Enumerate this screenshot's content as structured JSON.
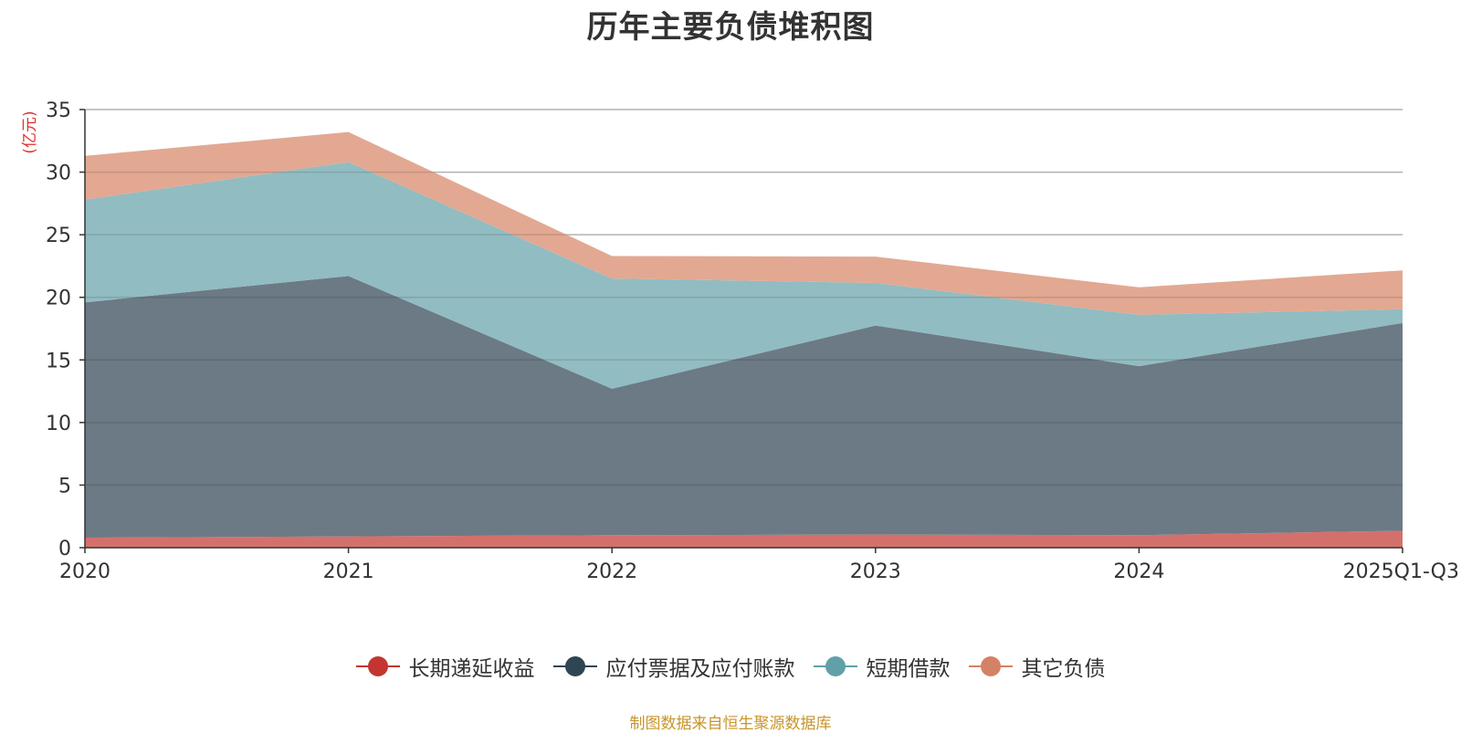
{
  "chart_data": {
    "type": "area",
    "stacked": true,
    "title": "历年主要负债堆积图",
    "ylabel": "(亿元)",
    "xlabel": "",
    "categories": [
      "2020",
      "2021",
      "2022",
      "2023",
      "2024",
      "2025Q1-Q3"
    ],
    "ylim": [
      0,
      35
    ],
    "yticks": [
      0,
      5,
      10,
      15,
      20,
      25,
      30,
      35
    ],
    "grid": true,
    "legend_position": "bottom",
    "series": [
      {
        "name": "长期递延收益",
        "color": "#c23531",
        "fill": "#d4706c",
        "values": [
          0.8,
          0.9,
          1.0,
          1.05,
          1.0,
          1.35
        ]
      },
      {
        "name": "应付票据及应付账款",
        "color": "#2f4554",
        "fill": "#6c7a85",
        "values": [
          18.8,
          20.8,
          11.7,
          16.7,
          13.5,
          16.6
        ]
      },
      {
        "name": "短期借款",
        "color": "#61a0a8",
        "fill": "#91bcc2",
        "values": [
          8.2,
          9.1,
          8.8,
          3.4,
          4.1,
          1.1
        ]
      },
      {
        "name": "其它负债",
        "color": "#d48265",
        "fill": "#e2a892",
        "values": [
          3.5,
          2.4,
          1.8,
          2.1,
          2.2,
          3.1
        ]
      }
    ]
  },
  "source_note": "制图数据来自恒生聚源数据库"
}
